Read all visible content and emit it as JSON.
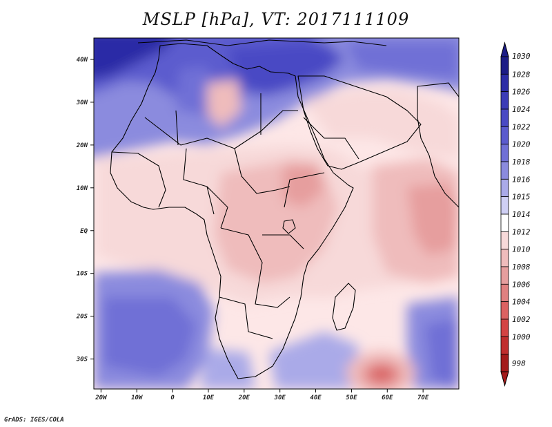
{
  "title": "MSLP [hPa], VT: 2017111109",
  "credit": "GrADS: IGES/COLA",
  "map": {
    "lon_range": [
      -22,
      80
    ],
    "lat_range": [
      -37,
      45
    ],
    "lon_ticks": [
      {
        "value": -20,
        "label": "20W"
      },
      {
        "value": -10,
        "label": "10W"
      },
      {
        "value": 0,
        "label": "0"
      },
      {
        "value": 10,
        "label": "10E"
      },
      {
        "value": 20,
        "label": "20E"
      },
      {
        "value": 30,
        "label": "30E"
      },
      {
        "value": 40,
        "label": "40E"
      },
      {
        "value": 50,
        "label": "50E"
      },
      {
        "value": 60,
        "label": "60E"
      },
      {
        "value": 70,
        "label": "70E"
      }
    ],
    "lat_ticks": [
      {
        "value": 40,
        "label": "40N"
      },
      {
        "value": 30,
        "label": "30N"
      },
      {
        "value": 20,
        "label": "20N"
      },
      {
        "value": 10,
        "label": "10N"
      },
      {
        "value": 0,
        "label": "EQ"
      },
      {
        "value": -10,
        "label": "10S"
      },
      {
        "value": -20,
        "label": "20S"
      },
      {
        "value": -30,
        "label": "30S"
      }
    ],
    "field_background": "#fde7e7",
    "pressure_features": [
      {
        "name": "low-over-southern-indian-ocean",
        "lon": 58,
        "lat": -33.5,
        "rx": 7,
        "ry": 4,
        "level": 1002
      },
      {
        "name": "low-over-arabian-sea",
        "lon": 64,
        "lat": 0,
        "rx": 11,
        "ry": 9,
        "level": 1009
      },
      {
        "name": "high-over-northwest-africa",
        "lon": -16,
        "lat": 42,
        "rx": 14,
        "ry": 6,
        "level": 1026
      },
      {
        "name": "high-over-south-atlantic",
        "lon": -7,
        "lat": -26,
        "rx": 16,
        "ry": 9,
        "level": 1020
      },
      {
        "name": "high-over-south-of-madagascar",
        "lon": 75,
        "lat": -29,
        "rx": 8,
        "ry": 7,
        "level": 1019
      }
    ]
  },
  "legend": {
    "levels": [
      "1030",
      "1028",
      "1026",
      "1024",
      "1022",
      "1020",
      "1018",
      "1016",
      "1015",
      "1014",
      "1012",
      "1010",
      "1008",
      "1006",
      "1004",
      "1002",
      "1000",
      "998"
    ],
    "colors": [
      "#1c1c86",
      "#2c2ca6",
      "#3b3bb7",
      "#4a4ac4",
      "#5b5bce",
      "#7070d6",
      "#8b8bde",
      "#aaaae8",
      "#cfcff4",
      "#ffffff",
      "#f7d9d9",
      "#efbcbc",
      "#e69e9e",
      "#e08080",
      "#dc6161",
      "#d44444",
      "#c02e2e",
      "#a41b1b"
    ]
  }
}
